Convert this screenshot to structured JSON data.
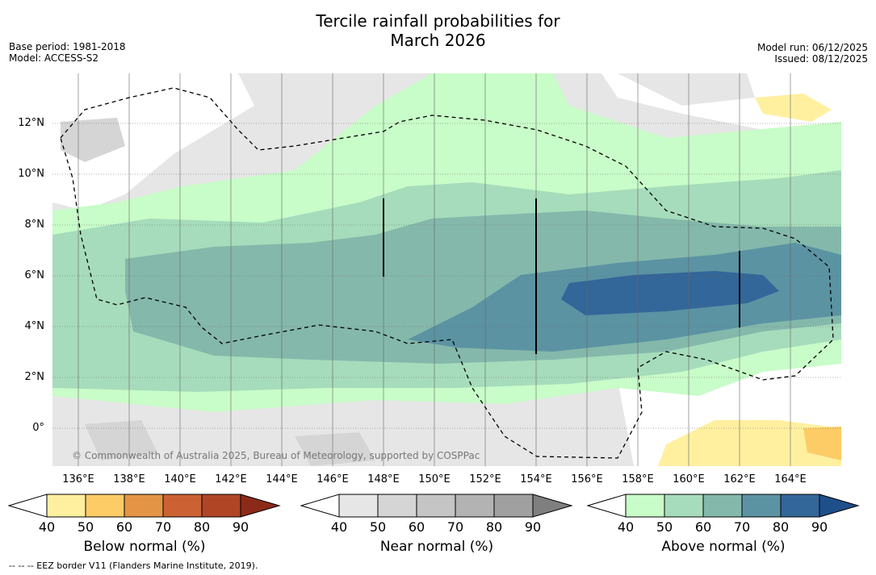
{
  "title_line1": "Tercile rainfall probabilities for",
  "title_line2": "March 2026",
  "base_period": "Base period: 1981-2018",
  "model": "Model: ACCESS-S2",
  "model_run": "Model run: 06/12/2025",
  "issued": "Issued: 08/12/2025",
  "lat_labels": [
    "12°N",
    "10°N",
    "8°N",
    "6°N",
    "4°N",
    "2°N",
    "0°"
  ],
  "lon_labels": [
    "136°E",
    "138°E",
    "140°E",
    "142°E",
    "144°E",
    "146°E",
    "148°E",
    "150°E",
    "152°E",
    "154°E",
    "156°E",
    "158°E",
    "160°E",
    "162°E",
    "164°E"
  ],
  "copyright": "© Commonwealth of Australia 2025, Bureau of Meteorology, supported by COSPPac",
  "colorbars": {
    "below": {
      "title": "Below normal (%)",
      "ticks": [
        "40",
        "50",
        "60",
        "70",
        "80",
        "90"
      ],
      "colors": [
        "#ffffff",
        "#fff0a0",
        "#fdcc66",
        "#e39545",
        "#cc6233",
        "#b04526",
        "#8c2a1a"
      ]
    },
    "near": {
      "title": "Near normal (%)",
      "ticks": [
        "40",
        "50",
        "60",
        "70",
        "80",
        "90"
      ],
      "colors": [
        "#ffffff",
        "#e6e6e6",
        "#d5d5d5",
        "#c5c5c5",
        "#b3b3b3",
        "#a0a0a0",
        "#7f7f7f"
      ]
    },
    "above": {
      "title": "Above normal (%)",
      "ticks": [
        "40",
        "50",
        "60",
        "70",
        "80",
        "90"
      ],
      "colors": [
        "#ffffff",
        "#c8fcc8",
        "#a6dcbb",
        "#84b8ab",
        "#5b93a3",
        "#336699",
        "#1f4f8a"
      ]
    }
  },
  "footnote": "-- -- -- EEZ border V11 (Flanders Marine Institute, 2019)."
}
